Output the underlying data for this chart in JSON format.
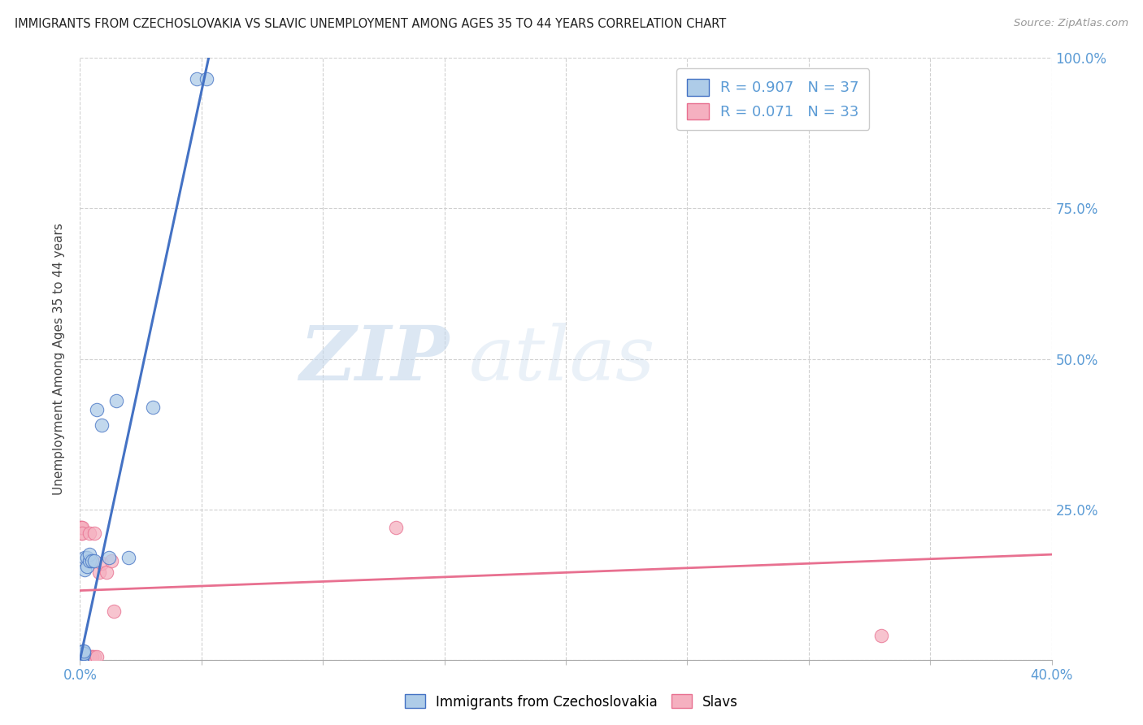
{
  "title": "IMMIGRANTS FROM CZECHOSLOVAKIA VS SLAVIC UNEMPLOYMENT AMONG AGES 35 TO 44 YEARS CORRELATION CHART",
  "source": "Source: ZipAtlas.com",
  "ylabel": "Unemployment Among Ages 35 to 44 years",
  "xlim": [
    0.0,
    0.4
  ],
  "ylim": [
    0.0,
    1.0
  ],
  "legend_labels": [
    "Immigrants from Czechoslovakia",
    "Slavs"
  ],
  "R_blue": 0.907,
  "N_blue": 37,
  "R_pink": 0.071,
  "N_pink": 33,
  "blue_color": "#aecce8",
  "pink_color": "#f5b0c0",
  "blue_line_color": "#4472c4",
  "pink_line_color": "#e87090",
  "blue_scatter_x": [
    0.0002,
    0.0003,
    0.0003,
    0.0004,
    0.0004,
    0.0005,
    0.0005,
    0.0006,
    0.0006,
    0.0007,
    0.0007,
    0.0008,
    0.0008,
    0.0009,
    0.0009,
    0.001,
    0.001,
    0.0012,
    0.0013,
    0.0014,
    0.0015,
    0.002,
    0.002,
    0.003,
    0.003,
    0.004,
    0.004,
    0.005,
    0.006,
    0.007,
    0.009,
    0.012,
    0.015,
    0.02,
    0.03,
    0.048,
    0.052
  ],
  "blue_scatter_y": [
    0.005,
    0.005,
    0.005,
    0.005,
    0.005,
    0.005,
    0.005,
    0.005,
    0.005,
    0.005,
    0.005,
    0.005,
    0.005,
    0.005,
    0.007,
    0.005,
    0.01,
    0.012,
    0.015,
    0.01,
    0.015,
    0.17,
    0.15,
    0.17,
    0.155,
    0.165,
    0.175,
    0.165,
    0.165,
    0.415,
    0.39,
    0.17,
    0.43,
    0.17,
    0.42,
    0.966,
    0.966
  ],
  "pink_scatter_x": [
    0.0002,
    0.0003,
    0.0003,
    0.0004,
    0.0004,
    0.0005,
    0.0005,
    0.0006,
    0.0006,
    0.0007,
    0.0008,
    0.001,
    0.001,
    0.0012,
    0.0015,
    0.002,
    0.002,
    0.003,
    0.003,
    0.004,
    0.004,
    0.005,
    0.005,
    0.006,
    0.006,
    0.007,
    0.008,
    0.009,
    0.011,
    0.013,
    0.014,
    0.13,
    0.33
  ],
  "pink_scatter_y": [
    0.005,
    0.006,
    0.22,
    0.005,
    0.005,
    0.21,
    0.22,
    0.005,
    0.005,
    0.22,
    0.21,
    0.005,
    0.005,
    0.005,
    0.005,
    0.005,
    0.005,
    0.005,
    0.005,
    0.21,
    0.005,
    0.005,
    0.005,
    0.005,
    0.21,
    0.005,
    0.145,
    0.16,
    0.145,
    0.165,
    0.08,
    0.22,
    0.04
  ],
  "blue_trend_x0": 0.0,
  "blue_trend_y0": 0.0,
  "blue_trend_x1": 0.054,
  "blue_trend_y1": 1.02,
  "pink_trend_x0": 0.0,
  "pink_trend_y0": 0.115,
  "pink_trend_x1": 0.4,
  "pink_trend_y1": 0.175
}
